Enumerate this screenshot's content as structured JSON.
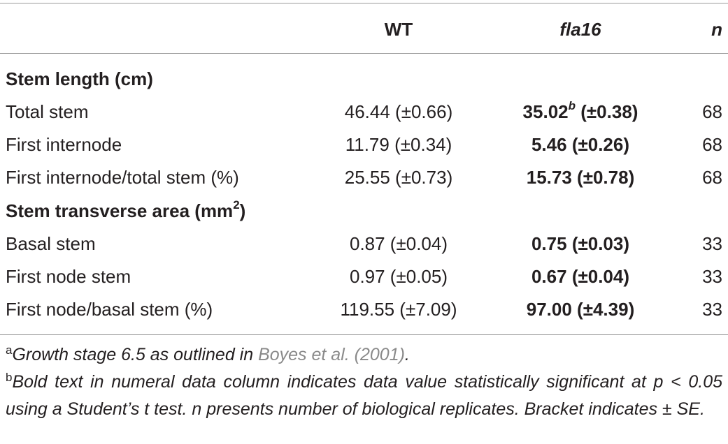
{
  "header": {
    "wt": "WT",
    "fla16": "fla16",
    "n": "n"
  },
  "sections": [
    {
      "title": "Stem length (cm)",
      "title_sup": "",
      "rows": [
        {
          "label": "Total stem",
          "wt": "46.44 (±0.66)",
          "fla_value": "35.02",
          "fla_sup": "b",
          "fla_se": "(±0.38)",
          "n": "68"
        },
        {
          "label": "First internode",
          "wt": "11.79 (±0.34)",
          "fla_value": "5.46",
          "fla_sup": "",
          "fla_se": "(±0.26)",
          "n": "68"
        },
        {
          "label": "First internode/total stem (%)",
          "wt": "25.55 (±0.73)",
          "fla_value": "15.73",
          "fla_sup": "",
          "fla_se": "(±0.78)",
          "n": "68"
        }
      ]
    },
    {
      "title": "Stem transverse area (mm",
      "title_sup": "2",
      "title_end": ")",
      "rows": [
        {
          "label": "Basal stem",
          "wt": "0.87 (±0.04)",
          "fla_value": "0.75",
          "fla_sup": "",
          "fla_se": "(±0.03)",
          "n": "33"
        },
        {
          "label": "First node stem",
          "wt": "0.97 (±0.05)",
          "fla_value": "0.67",
          "fla_sup": "",
          "fla_se": "(±0.04)",
          "n": "33"
        },
        {
          "label": "First node/basal stem (%)",
          "wt": "119.55 (±7.09)",
          "fla_value": "97.00",
          "fla_sup": "",
          "fla_se": "(±4.39)",
          "n": "33"
        }
      ]
    }
  ],
  "footnotes": {
    "a_mark": "a",
    "a_text": "Growth stage 6.5 as outlined in ",
    "a_link": "Boyes et al. (2001)",
    "a_end": ".",
    "b_mark": "b",
    "b_text": "Bold text in numeral data column indicates data value statistically significant at p < 0.05 using a Student’s t test. n presents number of biological replicates. Bracket indicates ± SE."
  }
}
